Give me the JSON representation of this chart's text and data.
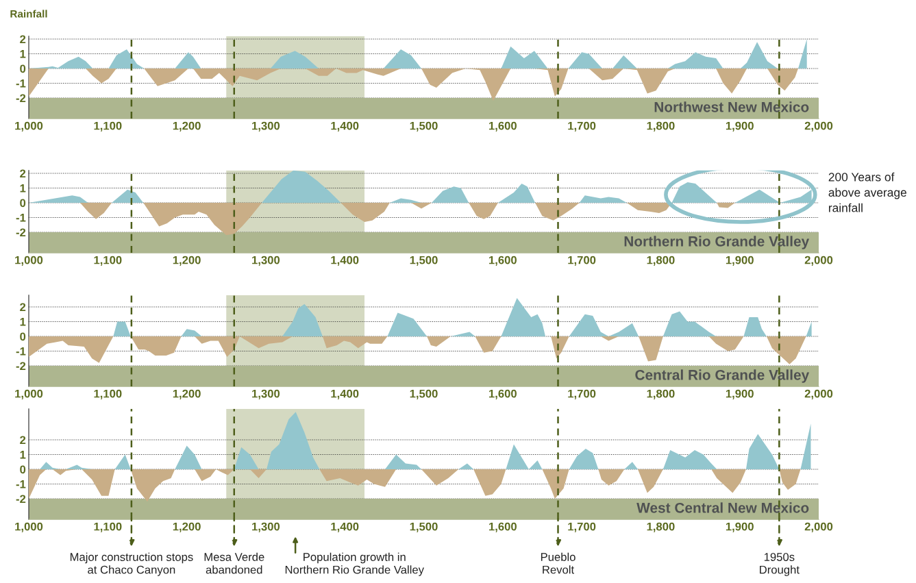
{
  "chart_data": [
    {
      "type": "area",
      "ylabel": "Rainfall",
      "x": [
        1000,
        1025,
        1030,
        1037,
        1050,
        1063,
        1072,
        1081,
        1092,
        1101,
        1111,
        1124,
        1137,
        1146,
        1163,
        1185,
        1202,
        1208,
        1218,
        1232,
        1241,
        1258,
        1267,
        1289,
        1306,
        1319,
        1337,
        1350,
        1367,
        1378,
        1389,
        1402,
        1415,
        1423,
        1441,
        1449,
        1471,
        1484,
        1497,
        1508,
        1516,
        1536,
        1553,
        1571,
        1578,
        1588,
        1598,
        1610,
        1627,
        1640,
        1657,
        1666,
        1674,
        1683,
        1700,
        1709,
        1726,
        1739,
        1753,
        1770,
        1783,
        1794,
        1809,
        1818,
        1831,
        1844,
        1857,
        1870,
        1879,
        1890,
        1901,
        1909,
        1922,
        1935,
        1948,
        1957,
        1970,
        1974,
        1985
      ],
      "series": [
        {
          "color": "#93c6ce",
          "values": [
            0,
            0.1,
            0.15,
            0.05,
            0.5,
            0.8,
            0.5,
            0,
            0,
            0,
            0.9,
            1.3,
            0.3,
            0,
            0,
            0,
            1.1,
            0.8,
            0,
            0,
            0,
            0,
            0,
            0,
            0,
            0.8,
            1.2,
            0.8,
            0,
            0,
            0,
            0,
            0,
            0,
            0,
            0,
            1.3,
            0.9,
            0,
            0,
            0,
            0,
            0,
            0,
            0,
            0,
            0,
            1.5,
            0.7,
            1.2,
            0,
            0,
            0,
            0,
            1.1,
            1.0,
            0,
            0,
            0.9,
            0,
            0,
            0,
            0,
            0.3,
            0.5,
            1.1,
            0.8,
            0.7,
            0,
            0,
            0,
            0.4,
            1.8,
            0.5,
            0,
            0,
            0,
            0,
            2.0
          ]
        },
        {
          "color": "#c9ae87",
          "values": [
            -1.9,
            0,
            0,
            0,
            0,
            0,
            0,
            -0.5,
            -1.0,
            -0.7,
            0,
            0,
            0,
            0,
            -1.2,
            -0.8,
            0,
            0,
            -0.7,
            -0.7,
            -0.3,
            -1.2,
            -0.5,
            -0.8,
            -0.3,
            0,
            0,
            0,
            -0.5,
            -0.5,
            0,
            -0.3,
            -0.3,
            -0.1,
            -0.4,
            -0.5,
            0,
            0,
            0,
            -1.1,
            -1.3,
            -0.3,
            0,
            -0.1,
            -0.9,
            -2.2,
            -1.2,
            0,
            0,
            0,
            -0.1,
            -1.9,
            -1.4,
            0,
            0,
            0,
            -0.8,
            -0.7,
            0,
            -0.1,
            -1.7,
            -1.5,
            -0.2,
            0,
            0,
            0,
            0,
            0,
            -1.0,
            -1.7,
            -0.8,
            0,
            0,
            0,
            -1.1,
            -1.5,
            -0.6,
            0,
            0
          ]
        }
      ],
      "xlim": [
        1000,
        2000
      ],
      "ylim": [
        -3.4,
        2.2
      ],
      "xticks": [
        {
          "value": 1000,
          "label": "1,000"
        },
        {
          "value": 1100,
          "label": "1,100"
        },
        {
          "value": 1200,
          "label": "1,200"
        },
        {
          "value": 1300,
          "label": "1,300"
        },
        {
          "value": 1400,
          "label": "1,400"
        },
        {
          "value": 1500,
          "label": "1,500"
        },
        {
          "value": 1600,
          "label": "1,600"
        },
        {
          "value": 1700,
          "label": "1,700"
        },
        {
          "value": 1800,
          "label": "1,800"
        },
        {
          "value": 1900,
          "label": "1,900"
        },
        {
          "value": 2000,
          "label": "2,000"
        }
      ],
      "yticks": [
        2,
        1,
        0,
        -1,
        -2
      ],
      "grid": "y",
      "bands": [
        {
          "axis": "x",
          "from": 1250,
          "to": 1425,
          "color": "#d4d9c1"
        },
        {
          "axis": "y",
          "from": -2,
          "to": -3.4,
          "label": "Northwest New Mexico",
          "color": "#adb68f"
        }
      ],
      "ref_lines": [
        {
          "axis": "x",
          "value": 1130,
          "color": "#4d5e1a",
          "line_style": "dashed"
        },
        {
          "axis": "x",
          "value": 1260,
          "color": "#4d5e1a",
          "line_style": "dashed"
        },
        {
          "axis": "x",
          "value": 1670,
          "color": "#4d5e1a",
          "line_style": "dashed"
        },
        {
          "axis": "x",
          "value": 1950,
          "color": "#4d5e1a",
          "line_style": "dashed"
        }
      ]
    },
    {
      "type": "area",
      "x": [
        1000,
        1055,
        1065,
        1075,
        1085,
        1095,
        1105,
        1125,
        1135,
        1145,
        1165,
        1175,
        1185,
        1195,
        1210,
        1215,
        1225,
        1235,
        1250,
        1260,
        1270,
        1280,
        1295,
        1320,
        1335,
        1350,
        1365,
        1380,
        1395,
        1410,
        1425,
        1435,
        1450,
        1457,
        1471,
        1484,
        1497,
        1510,
        1524,
        1538,
        1547,
        1557,
        1567,
        1576,
        1584,
        1594,
        1614,
        1624,
        1631,
        1641,
        1650,
        1664,
        1674,
        1688,
        1697,
        1704,
        1724,
        1734,
        1747,
        1757,
        1771,
        1787,
        1798,
        1807,
        1814,
        1824,
        1834,
        1844,
        1871,
        1874,
        1885,
        1894,
        1925,
        1951,
        1977,
        1991
      ],
      "series": [
        {
          "color": "#93c6ce",
          "values": [
            0,
            0.5,
            0.4,
            0,
            0,
            0,
            0,
            0.9,
            0.7,
            0,
            0,
            0,
            0,
            0,
            0,
            0,
            0,
            0,
            0,
            0,
            0,
            0,
            0,
            1.6,
            2.2,
            2.1,
            1.5,
            0.8,
            0,
            0,
            0,
            0,
            0,
            0,
            0.3,
            0.2,
            0,
            0,
            0.8,
            1.1,
            1.0,
            0,
            0,
            0,
            0,
            0,
            0.7,
            1.3,
            1.1,
            0,
            0,
            0,
            0,
            0,
            0,
            0.5,
            0.3,
            0.4,
            0.3,
            0,
            0,
            0,
            0,
            0,
            0,
            1.1,
            1.4,
            1.3,
            0,
            0,
            0,
            0,
            0.9,
            0,
            0.4,
            0.9
          ]
        },
        {
          "color": "#c9ae87",
          "values": [
            0,
            0,
            0,
            -0.6,
            -1.1,
            -0.7,
            0,
            0,
            0,
            0,
            -1.6,
            -1.4,
            -1.0,
            -0.8,
            -0.8,
            -0.6,
            -0.8,
            -1.5,
            -2.2,
            -2.1,
            -1.6,
            -1.0,
            0,
            0,
            0,
            0,
            0,
            0,
            0,
            -0.8,
            -1.3,
            -1.2,
            -0.6,
            0,
            0,
            0,
            -0.4,
            0,
            0,
            0,
            0,
            0,
            -0.9,
            -1.1,
            -0.9,
            0,
            0,
            0,
            0,
            0,
            -0.9,
            -1.2,
            -0.9,
            -0.4,
            0,
            0,
            0,
            0,
            0,
            0,
            -0.5,
            -0.6,
            -0.7,
            -0.5,
            0,
            0,
            0,
            0,
            0,
            -0.3,
            -0.35,
            0,
            0,
            0,
            0,
            0
          ]
        }
      ],
      "xlim": [
        1000,
        2000
      ],
      "ylim": [
        -3.4,
        2.2
      ],
      "xticks": [
        {
          "value": 1000,
          "label": "1,000"
        },
        {
          "value": 1100,
          "label": "1,100"
        },
        {
          "value": 1200,
          "label": "1,200"
        },
        {
          "value": 1300,
          "label": "1,300"
        },
        {
          "value": 1400,
          "label": "1,400"
        },
        {
          "value": 1500,
          "label": "1,500"
        },
        {
          "value": 1600,
          "label": "1,600"
        },
        {
          "value": 1700,
          "label": "1,700"
        },
        {
          "value": 1800,
          "label": "1,800"
        },
        {
          "value": 1900,
          "label": "1,900"
        },
        {
          "value": 2000,
          "label": "2,000"
        }
      ],
      "yticks": [
        2,
        1,
        0,
        -1,
        -2
      ],
      "grid": "y",
      "annotations": [
        "200 Years of\nabove average\nrainfall"
      ],
      "bands": [
        {
          "axis": "x",
          "from": 1250,
          "to": 1425,
          "color": "#d4d9c1"
        },
        {
          "axis": "y",
          "from": -2,
          "to": -3.4,
          "label": "Northern Rio Grande Valley",
          "color": "#adb68f"
        }
      ],
      "ref_lines": [
        {
          "axis": "x",
          "value": 1130,
          "color": "#4d5e1a",
          "line_style": "dashed"
        },
        {
          "axis": "x",
          "value": 1260,
          "color": "#4d5e1a",
          "line_style": "dashed"
        },
        {
          "axis": "x",
          "value": 1670,
          "color": "#4d5e1a",
          "line_style": "dashed"
        },
        {
          "axis": "x",
          "value": 1950,
          "color": "#4d5e1a",
          "line_style": "dashed"
        }
      ]
    },
    {
      "type": "area",
      "x": [
        1000,
        1023,
        1034,
        1043,
        1050,
        1070,
        1080,
        1089,
        1100,
        1107,
        1112,
        1122,
        1129,
        1139,
        1147,
        1152,
        1160,
        1174,
        1184,
        1193,
        1200,
        1210,
        1219,
        1230,
        1240,
        1251,
        1260,
        1267,
        1291,
        1304,
        1321,
        1334,
        1341,
        1349,
        1363,
        1372,
        1377,
        1390,
        1399,
        1407,
        1417,
        1428,
        1432,
        1447,
        1454,
        1467,
        1487,
        1504,
        1509,
        1516,
        1534,
        1558,
        1565,
        1576,
        1587,
        1598,
        1618,
        1636,
        1644,
        1650,
        1654,
        1661,
        1668,
        1674,
        1684,
        1704,
        1714,
        1724,
        1734,
        1747,
        1764,
        1772,
        1784,
        1794,
        1803,
        1814,
        1824,
        1834,
        1843,
        1851,
        1861,
        1870,
        1885,
        1894,
        1905,
        1912,
        1923,
        1928,
        1934,
        1941,
        1951,
        1963,
        1971,
        1984,
        1991
      ],
      "series": [
        {
          "color": "#93c6ce",
          "values": [
            0,
            0,
            0,
            0,
            0,
            0,
            0,
            0,
            0,
            0,
            1.0,
            1.0,
            0,
            0,
            0,
            0,
            0,
            0,
            0,
            0,
            0.5,
            0.4,
            0,
            0,
            0,
            0,
            0,
            0,
            0,
            0,
            0,
            1.0,
            1.9,
            2.2,
            1.3,
            0,
            0,
            0,
            0,
            0,
            0,
            0,
            0,
            0,
            0,
            1.6,
            1.2,
            0,
            0,
            0,
            0,
            0.3,
            0,
            0,
            0,
            0,
            2.6,
            1.3,
            1.5,
            0.9,
            0,
            0,
            0,
            0,
            0,
            1.5,
            1.4,
            0.3,
            0,
            0.3,
            0.9,
            0,
            0,
            0,
            0,
            1.5,
            1.7,
            1.0,
            1.0,
            0.7,
            0.3,
            0,
            0,
            0,
            0,
            1.3,
            1.3,
            0.5,
            0,
            0,
            0,
            0,
            0,
            0,
            1.0
          ]
        },
        {
          "color": "#c9ae87",
          "values": [
            -1.4,
            -0.5,
            -0.4,
            -0.3,
            -0.6,
            -0.7,
            -1.5,
            -1.8,
            -0.7,
            0,
            0,
            0,
            0,
            -0.9,
            -0.9,
            -1.0,
            -1.3,
            -1.3,
            -1.1,
            0,
            0,
            0,
            -0.5,
            -0.3,
            -0.3,
            -1.4,
            -0.9,
            0,
            -0.8,
            -0.5,
            -0.4,
            0,
            0,
            0,
            0,
            0,
            -0.8,
            -0.6,
            -0.3,
            -0.4,
            -0.8,
            -0.4,
            -0.5,
            -0.5,
            0,
            0,
            0,
            0,
            -0.6,
            -0.7,
            0,
            0,
            0,
            -1.1,
            -1.0,
            0,
            0,
            0,
            0,
            0,
            0,
            0,
            -1.5,
            -1.1,
            0,
            0,
            0,
            0,
            -0.3,
            0,
            0,
            0,
            -1.7,
            -1.6,
            0,
            0,
            0,
            0,
            0,
            0,
            0,
            -0.5,
            -1.0,
            -0.9,
            0,
            0,
            0,
            0,
            0,
            -0.8,
            -1.3,
            -1.9,
            -1.5,
            0,
            0
          ]
        }
      ],
      "xlim": [
        1000,
        2000
      ],
      "ylim": [
        -3.4,
        2.8
      ],
      "xticks": [
        {
          "value": 1000,
          "label": "1,000"
        },
        {
          "value": 1100,
          "label": "1,100"
        },
        {
          "value": 1200,
          "label": "1,200"
        },
        {
          "value": 1300,
          "label": "1,300"
        },
        {
          "value": 1400,
          "label": "1,400"
        },
        {
          "value": 1500,
          "label": "1,500"
        },
        {
          "value": 1600,
          "label": "1,600"
        },
        {
          "value": 1700,
          "label": "1,700"
        },
        {
          "value": 1800,
          "label": "1,800"
        },
        {
          "value": 1900,
          "label": "1,900"
        },
        {
          "value": 2000,
          "label": "2,000"
        }
      ],
      "yticks": [
        2,
        1,
        0,
        -1,
        -2
      ],
      "grid": "y",
      "bands": [
        {
          "axis": "x",
          "from": 1250,
          "to": 1425,
          "color": "#d4d9c1"
        },
        {
          "axis": "y",
          "from": -2,
          "to": -3.4,
          "label": "Central Rio Grande Valley",
          "color": "#adb68f"
        }
      ],
      "ref_lines": [
        {
          "axis": "x",
          "value": 1130,
          "color": "#4d5e1a",
          "line_style": "dashed"
        },
        {
          "axis": "x",
          "value": 1260,
          "color": "#4d5e1a",
          "line_style": "dashed"
        },
        {
          "axis": "x",
          "value": 1670,
          "color": "#4d5e1a",
          "line_style": "dashed"
        },
        {
          "axis": "x",
          "value": 1950,
          "color": "#4d5e1a",
          "line_style": "dashed"
        }
      ]
    },
    {
      "type": "area",
      "x": [
        1000,
        1014,
        1022,
        1030,
        1040,
        1047,
        1061,
        1067,
        1080,
        1092,
        1101,
        1109,
        1122,
        1129,
        1137,
        1150,
        1160,
        1170,
        1180,
        1185,
        1200,
        1210,
        1219,
        1230,
        1237,
        1244,
        1252,
        1260,
        1269,
        1280,
        1291,
        1301,
        1307,
        1317,
        1329,
        1338,
        1349,
        1360,
        1368,
        1377,
        1394,
        1407,
        1417,
        1428,
        1437,
        1451,
        1465,
        1477,
        1491,
        1497,
        1516,
        1531,
        1544,
        1555,
        1563,
        1578,
        1587,
        1598,
        1604,
        1614,
        1633,
        1644,
        1650,
        1661,
        1666,
        1677,
        1684,
        1694,
        1705,
        1714,
        1721,
        1725,
        1734,
        1744,
        1754,
        1764,
        1771,
        1783,
        1791,
        1803,
        1812,
        1831,
        1843,
        1854,
        1864,
        1871,
        1881,
        1891,
        1901,
        1908,
        1912,
        1923,
        1941,
        1950,
        1954,
        1961,
        1971,
        1977,
        1990
      ],
      "series": [
        {
          "color": "#93c6ce",
          "values": [
            0,
            0,
            0.5,
            0.1,
            0,
            0,
            0.3,
            0.1,
            0,
            0,
            0,
            0,
            1.0,
            0,
            0,
            0,
            0,
            0,
            0,
            0,
            1.6,
            1.0,
            0,
            0,
            0,
            0,
            0,
            0,
            1.5,
            1.0,
            0,
            0,
            1.2,
            1.7,
            3.4,
            3.9,
            2.5,
            0.8,
            0,
            0,
            0,
            0,
            0,
            0,
            0,
            0,
            1.0,
            0.4,
            0.3,
            0,
            0,
            0,
            0,
            0.4,
            0,
            0,
            0,
            0,
            0,
            1.7,
            0,
            0.6,
            0,
            0,
            0,
            0,
            0,
            0.9,
            1.4,
            1.1,
            0,
            0,
            0,
            0,
            0,
            0.5,
            0,
            0,
            0,
            0,
            1.3,
            0.8,
            1.3,
            1.0,
            0.4,
            0,
            0,
            0,
            0,
            0,
            1.4,
            2.4,
            1.0,
            0,
            0,
            0,
            0,
            0,
            3.1
          ]
        },
        {
          "color": "#c9ae87",
          "values": [
            -2.0,
            -0.4,
            0,
            0,
            -0.4,
            -0.1,
            0,
            0,
            -0.7,
            -1.8,
            -1.8,
            0,
            0,
            0,
            -1.3,
            -2.2,
            -1.3,
            -0.8,
            -0.6,
            0,
            0,
            0,
            -0.8,
            -0.5,
            0,
            -0.2,
            -0.4,
            0,
            0,
            0,
            -0.6,
            0,
            0,
            0,
            0,
            0,
            0,
            0,
            0,
            -0.8,
            -0.6,
            -0.9,
            -1.1,
            -0.7,
            -1.0,
            -1.2,
            0,
            0,
            0,
            0,
            -1.1,
            -0.6,
            0,
            0,
            0,
            -1.8,
            -1.7,
            -1.0,
            0,
            0,
            0,
            0,
            0,
            -1.3,
            -2.0,
            -1.3,
            0,
            0,
            0,
            0,
            0,
            -0.7,
            -1.1,
            -0.8,
            0,
            0,
            0,
            -1.6,
            -1.2,
            0,
            0,
            0,
            0,
            0,
            0,
            -0.6,
            -1.1,
            -1.6,
            -0.9,
            0,
            0,
            0,
            0,
            0,
            -0.9,
            -1.4,
            -1.0,
            0,
            0
          ]
        }
      ],
      "xlim": [
        1000,
        2000
      ],
      "ylim": [
        -3.4,
        4.1
      ],
      "xticks": [
        {
          "value": 1000,
          "label": "1,000"
        },
        {
          "value": 1100,
          "label": "1,100"
        },
        {
          "value": 1200,
          "label": "1,200"
        },
        {
          "value": 1300,
          "label": "1,300"
        },
        {
          "value": 1400,
          "label": "1,400"
        },
        {
          "value": 1500,
          "label": "1,500"
        },
        {
          "value": 1600,
          "label": "1,600"
        },
        {
          "value": 1700,
          "label": "1,700"
        },
        {
          "value": 1800,
          "label": "1,800"
        },
        {
          "value": 1900,
          "label": "1,900"
        },
        {
          "value": 2000,
          "label": "2,000"
        }
      ],
      "yticks": [
        2,
        1,
        0,
        -1,
        -2
      ],
      "grid": "y",
      "annotations": [
        "Population growth in\nNorthern Rio Grande Valley"
      ],
      "bands": [
        {
          "axis": "x",
          "from": 1250,
          "to": 1425,
          "color": "#d4d9c1"
        },
        {
          "axis": "y",
          "from": -2,
          "to": -3.4,
          "label": "West Central New Mexico",
          "color": "#adb68f"
        }
      ],
      "ref_lines": [
        {
          "axis": "x",
          "value": 1130,
          "label": "Major construction stops\nat Chaco Canyon",
          "color": "#4d5e1a",
          "line_style": "dashed"
        },
        {
          "axis": "x",
          "value": 1260,
          "label": "Mesa Verde\nabandoned",
          "color": "#4d5e1a",
          "line_style": "dashed"
        },
        {
          "axis": "x",
          "value": 1670,
          "label": "Pueblo\nRevolt",
          "color": "#4d5e1a",
          "line_style": "dashed"
        },
        {
          "axis": "x",
          "value": 1950,
          "label": "1950s\nDrought",
          "color": "#4d5e1a",
          "line_style": "dashed"
        }
      ]
    }
  ]
}
